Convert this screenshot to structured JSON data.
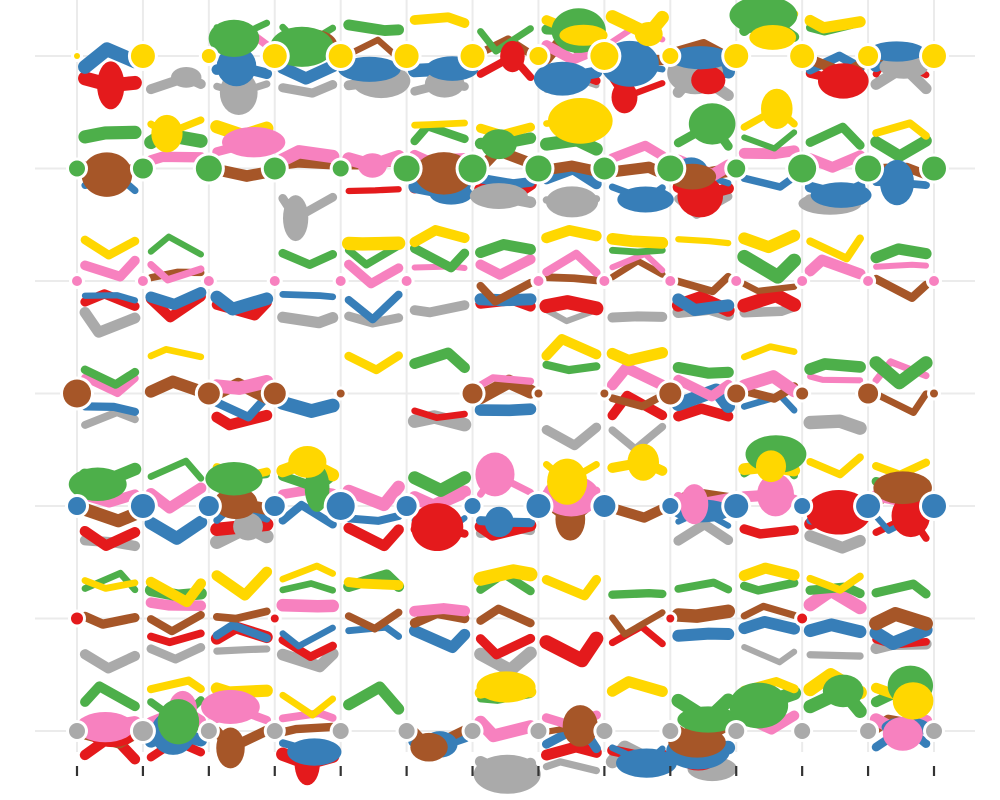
{
  "chart_data": {
    "type": "scatter",
    "title": "",
    "xlabel": "",
    "ylabel": "",
    "grid": true,
    "legend": "none",
    "x": [
      1,
      2,
      3,
      4,
      5,
      6,
      7,
      8,
      9,
      10,
      11,
      12,
      13,
      14
    ],
    "rows": [
      1,
      2,
      3,
      4,
      5,
      6,
      7
    ],
    "dot_colors": {
      "row1": "#ffd700",
      "row2": "#4daf4a",
      "row3": "#f781bf",
      "row4": "#a65628",
      "row5": "#377eb8",
      "row6": "#e41a1c",
      "row7": "#aaaaaa"
    },
    "series": [
      {
        "color": "#ffd700",
        "row": 1,
        "sizes": [
          3,
          12,
          7,
          12,
          12,
          12,
          12,
          9,
          14,
          8,
          12,
          12,
          10,
          12
        ]
      },
      {
        "color": "#4daf4a",
        "row": 2,
        "sizes": [
          8,
          10,
          13,
          11,
          8,
          13,
          14,
          13,
          11,
          13,
          9,
          14,
          13,
          12
        ]
      },
      {
        "color": "#f781bf",
        "row": 3,
        "sizes": [
          5,
          5,
          5,
          5,
          5,
          5,
          0,
          5,
          5,
          5,
          5,
          5,
          5,
          5
        ]
      },
      {
        "color": "#a65628",
        "row": 4,
        "sizes": [
          14,
          0,
          11,
          11,
          4,
          0,
          10,
          4,
          4,
          11,
          9,
          6,
          10,
          4
        ]
      },
      {
        "color": "#377eb8",
        "row": 5,
        "sizes": [
          9,
          12,
          10,
          10,
          14,
          10,
          8,
          12,
          11,
          8,
          12,
          8,
          12,
          12
        ]
      },
      {
        "color": "#e41a1c",
        "row": 6,
        "sizes": [
          6,
          0,
          0,
          4,
          0,
          0,
          0,
          0,
          0,
          4,
          0,
          5,
          0,
          0
        ]
      },
      {
        "color": "#aaaaaa",
        "row": 7,
        "sizes": [
          8,
          10,
          8,
          8,
          8,
          8,
          8,
          8,
          8,
          8,
          8,
          8,
          8,
          8
        ]
      }
    ]
  }
}
